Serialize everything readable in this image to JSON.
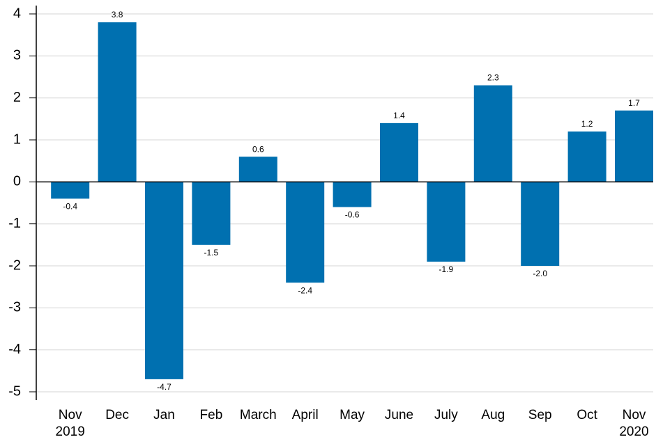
{
  "chart_data": {
    "type": "bar",
    "categories": [
      "Nov 2019",
      "Dec",
      "Jan",
      "Feb",
      "March",
      "April",
      "May",
      "June",
      "July",
      "Aug",
      "Sep",
      "Oct",
      "Nov 2020"
    ],
    "values": [
      -0.4,
      3.8,
      -4.7,
      -1.5,
      0.6,
      -2.4,
      -0.6,
      1.4,
      -1.9,
      2.3,
      -2.0,
      1.2,
      1.7
    ],
    "value_labels": [
      "-0.4",
      "3.8",
      "-4.7",
      "-1.5",
      "0.6",
      "-2.4",
      "-0.6",
      "1.4",
      "-1.9",
      "2.3",
      "-2.0",
      "1.2",
      "1.7"
    ],
    "color": "#0070b0",
    "ylim": [
      -5,
      4
    ],
    "yticks": [
      -5,
      -4,
      -3,
      -2,
      -1,
      0,
      1,
      2,
      3,
      4
    ],
    "grid": true
  }
}
